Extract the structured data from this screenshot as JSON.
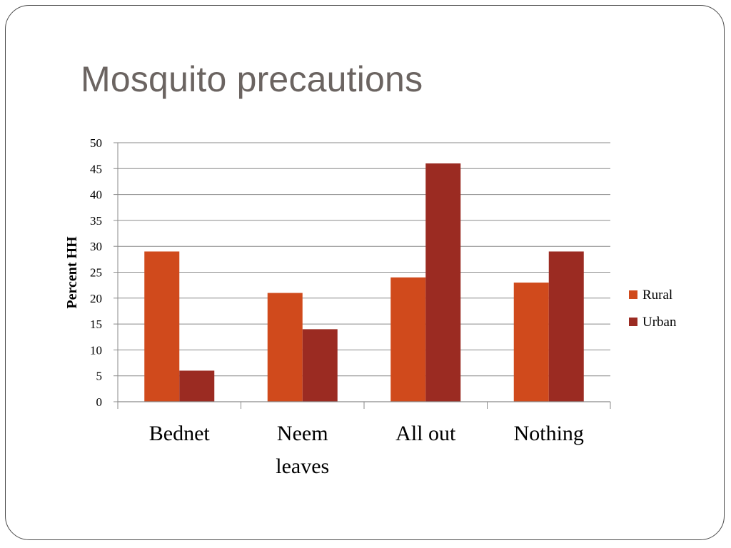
{
  "slide": {
    "title": "Mosquito precautions"
  },
  "chart_data": {
    "type": "bar",
    "title": "",
    "xlabel": "",
    "ylabel": "Percent HH",
    "categories": [
      [
        "Bednet"
      ],
      [
        "Neem",
        "leaves"
      ],
      [
        "All out"
      ],
      [
        "Nothing"
      ]
    ],
    "ylim": [
      0,
      50
    ],
    "yticks": [
      0,
      5,
      10,
      15,
      20,
      25,
      30,
      35,
      40,
      45,
      50
    ],
    "grid": true,
    "legend_position": "right",
    "series": [
      {
        "name": "Rural",
        "values": [
          29,
          21,
          24,
          23
        ],
        "color": "#d04a1c"
      },
      {
        "name": "Urban",
        "values": [
          6,
          14,
          46,
          29
        ],
        "color": "#9b2b22"
      }
    ]
  }
}
